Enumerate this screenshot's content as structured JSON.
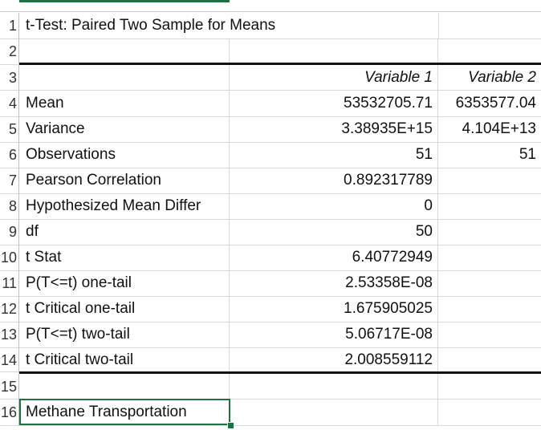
{
  "sheet": {
    "rows": [
      {
        "num": "1",
        "a": "t-Test: Paired Two Sample for Means",
        "b": "",
        "c": ""
      },
      {
        "num": "2",
        "a": "",
        "b": "",
        "c": ""
      },
      {
        "num": "3",
        "a": "",
        "b": "Variable 1",
        "c": "Variable 2"
      },
      {
        "num": "4",
        "a": "Mean",
        "b": "53532705.71",
        "c": "6353577.04"
      },
      {
        "num": "5",
        "a": "Variance",
        "b": "3.38935E+15",
        "c": "4.104E+13"
      },
      {
        "num": "6",
        "a": "Observations",
        "b": "51",
        "c": "51"
      },
      {
        "num": "7",
        "a": "Pearson Correlation",
        "b": "0.892317789",
        "c": ""
      },
      {
        "num": "8",
        "a": "Hypothesized Mean Differ",
        "b": "0",
        "c": ""
      },
      {
        "num": "9",
        "a": "df",
        "b": "50",
        "c": ""
      },
      {
        "num": "10",
        "a": "t Stat",
        "b": "6.40772949",
        "c": ""
      },
      {
        "num": "11",
        "a": "P(T<=t) one-tail",
        "b": "2.53358E-08",
        "c": ""
      },
      {
        "num": "12",
        "a": "t Critical one-tail",
        "b": "1.675905025",
        "c": ""
      },
      {
        "num": "13",
        "a": "P(T<=t) two-tail",
        "b": "5.06717E-08",
        "c": ""
      },
      {
        "num": "14",
        "a": "t Critical two-tail",
        "b": "2.008559112",
        "c": ""
      },
      {
        "num": "15",
        "a": "",
        "b": "",
        "c": ""
      },
      {
        "num": "16",
        "a": "Methane Transportation",
        "b": "",
        "c": ""
      }
    ]
  },
  "colors": {
    "selection": "#1e7145",
    "rule": "#111111",
    "grid": "#d9d9d9"
  }
}
